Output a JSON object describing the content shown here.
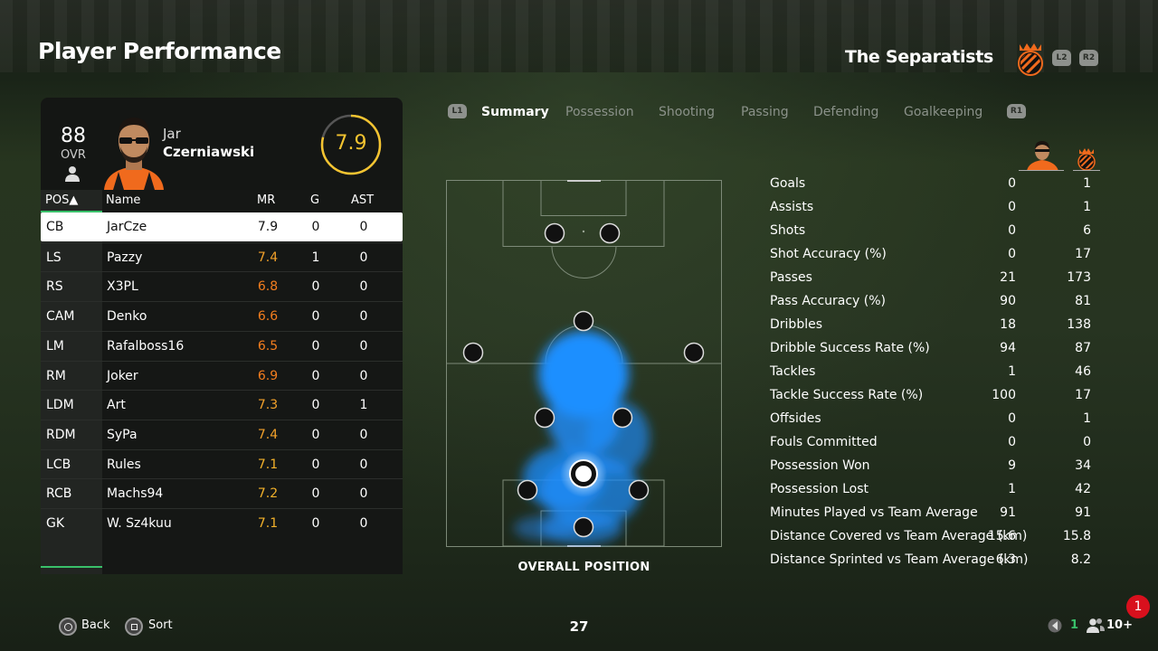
{
  "header": {
    "title": "Player Performance",
    "team_name": "The Separatists",
    "left_bumper": "L2",
    "right_bumper": "R2"
  },
  "player": {
    "ovr": "88",
    "ovr_label": "OVR",
    "first_name": "Jar",
    "last_name": "Czerniawski",
    "match_rating": "7.9"
  },
  "roster": {
    "columns": [
      "POS▲",
      "Name",
      "MR",
      "G",
      "AST"
    ],
    "rows": [
      {
        "pos": "CB",
        "name": "JarCze",
        "mr": "7.9",
        "g": "0",
        "ast": "0",
        "mr_color": "#111111",
        "selected": true
      },
      {
        "pos": "LS",
        "name": "Pazzy",
        "mr": "7.4",
        "g": "1",
        "ast": "0",
        "mr_color": "#f2a12a"
      },
      {
        "pos": "RS",
        "name": "X3PL",
        "mr": "6.8",
        "g": "0",
        "ast": "0",
        "mr_color": "#f47e1e"
      },
      {
        "pos": "CAM",
        "name": "Denko",
        "mr": "6.6",
        "g": "0",
        "ast": "0",
        "mr_color": "#f47e1e"
      },
      {
        "pos": "LM",
        "name": "Rafalboss16",
        "mr": "6.5",
        "g": "0",
        "ast": "0",
        "mr_color": "#f47e1e"
      },
      {
        "pos": "RM",
        "name": "Joker",
        "mr": "6.9",
        "g": "0",
        "ast": "0",
        "mr_color": "#f47e1e"
      },
      {
        "pos": "LDM",
        "name": "Art",
        "mr": "7.3",
        "g": "0",
        "ast": "1",
        "mr_color": "#f2a12a"
      },
      {
        "pos": "RDM",
        "name": "SyPa",
        "mr": "7.4",
        "g": "0",
        "ast": "0",
        "mr_color": "#f2a12a"
      },
      {
        "pos": "LCB",
        "name": "Rules",
        "mr": "7.1",
        "g": "0",
        "ast": "0",
        "mr_color": "#f2b12a"
      },
      {
        "pos": "RCB",
        "name": "Machs94",
        "mr": "7.2",
        "g": "0",
        "ast": "0",
        "mr_color": "#f2b12a"
      },
      {
        "pos": "GK",
        "name": "W. Sz4kuu",
        "mr": "7.1",
        "g": "0",
        "ast": "0",
        "mr_color": "#f2b12a"
      }
    ]
  },
  "tabs": {
    "left_bumper": "L1",
    "right_bumper": "R1",
    "items": [
      "Summary",
      "Possession",
      "Shooting",
      "Passing",
      "Defending",
      "Goalkeeping"
    ],
    "active": "Summary"
  },
  "pitch": {
    "caption": "OVERALL POSITION"
  },
  "stats": [
    {
      "label": "Goals",
      "player": "0",
      "team": "1"
    },
    {
      "label": "Assists",
      "player": "0",
      "team": "1"
    },
    {
      "label": "Shots",
      "player": "0",
      "team": "6"
    },
    {
      "label": "Shot Accuracy (%)",
      "player": "0",
      "team": "17"
    },
    {
      "label": "Passes",
      "player": "21",
      "team": "173"
    },
    {
      "label": "Pass Accuracy (%)",
      "player": "90",
      "team": "81"
    },
    {
      "label": "Dribbles",
      "player": "18",
      "team": "138"
    },
    {
      "label": "Dribble Success Rate (%)",
      "player": "94",
      "team": "87"
    },
    {
      "label": "Tackles",
      "player": "1",
      "team": "46"
    },
    {
      "label": "Tackle Success Rate (%)",
      "player": "100",
      "team": "17"
    },
    {
      "label": "Offsides",
      "player": "0",
      "team": "1"
    },
    {
      "label": "Fouls Committed",
      "player": "0",
      "team": "0"
    },
    {
      "label": "Possession Won",
      "player": "9",
      "team": "34"
    },
    {
      "label": "Possession Lost",
      "player": "1",
      "team": "42"
    },
    {
      "label": "Minutes Played vs Team Average",
      "player": "91",
      "team": "91"
    },
    {
      "label": "Distance Covered vs Team Average (km)",
      "player": "15.6",
      "team": "15.8"
    },
    {
      "label": "Distance Sprinted vs Team Average (km)",
      "player": "6.3",
      "team": "8.2"
    }
  ],
  "footer": {
    "back_label": "Back",
    "sort_label": "Sort",
    "page_number": "27",
    "voice_count": "1",
    "party_count": "10+",
    "notification_count": "1"
  },
  "colors": {
    "accent_green": "#39c06a",
    "rating_yellow": "#f4c430",
    "heatmap_blue": "#1e90ff",
    "crest_orange": "#f06a1d"
  }
}
